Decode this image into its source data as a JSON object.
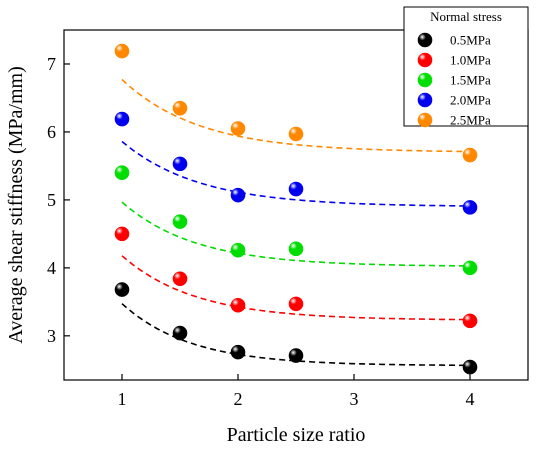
{
  "chart_data": {
    "type": "scatter",
    "xlabel": "Particle size ratio",
    "ylabel": "Average shear stiffness (MPa/mm)",
    "xlim": [
      0.5,
      4.5
    ],
    "ylim": [
      2.35,
      7.5
    ],
    "x_ticks": [
      1,
      2,
      3,
      4
    ],
    "y_ticks": [
      3,
      4,
      5,
      6,
      7
    ],
    "grid": false,
    "legend": {
      "title": "Normal stress",
      "position": "top-right"
    },
    "x": [
      1,
      1.5,
      2,
      2.5,
      4
    ],
    "series": [
      {
        "name": "0.5MPa",
        "color": "#000000",
        "values": [
          3.68,
          3.04,
          2.76,
          2.71,
          2.54
        ],
        "fit": [
          2.56,
          5.0,
          1.7
        ]
      },
      {
        "name": "1.0MPa",
        "color": "#ff0000",
        "values": [
          4.5,
          3.84,
          3.45,
          3.47,
          3.22
        ],
        "fit": [
          3.23,
          4.6,
          1.58
        ]
      },
      {
        "name": "1.5MPa",
        "color": "#00dd00",
        "values": [
          5.4,
          4.68,
          4.26,
          4.28,
          4.0
        ],
        "fit": [
          4.02,
          4.6,
          1.58
        ]
      },
      {
        "name": "2.0MPa",
        "color": "#0000ee",
        "values": [
          6.19,
          5.53,
          5.07,
          5.16,
          4.89
        ],
        "fit": [
          4.9,
          4.3,
          1.5
        ]
      },
      {
        "name": "2.5MPa",
        "color": "#ff8800",
        "values": [
          7.19,
          6.35,
          6.05,
          5.97,
          5.66
        ],
        "fit": [
          5.7,
          4.8,
          1.5
        ]
      }
    ]
  }
}
